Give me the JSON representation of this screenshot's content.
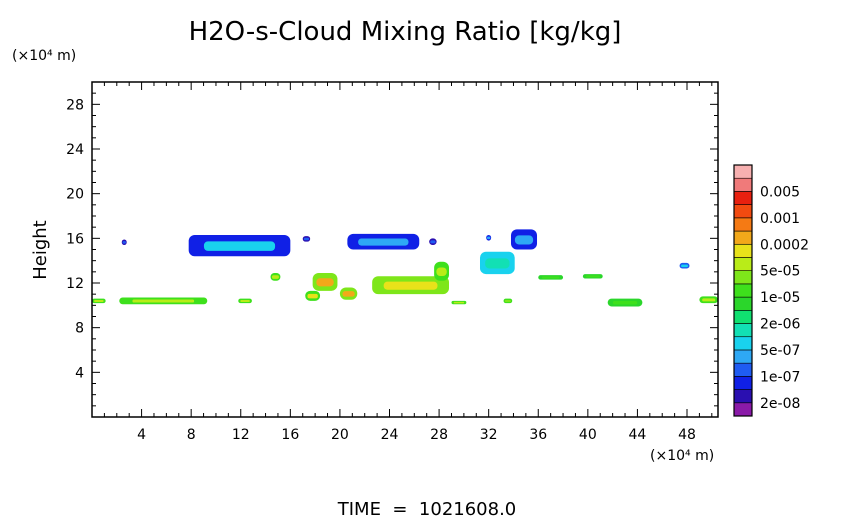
{
  "chart_data": {
    "type": "heatmap",
    "title": "H2O-s-Cloud Mixing Ratio [kg/kg]",
    "xlabel": "",
    "ylabel": "Height",
    "x_unit_label": "(×10⁴ m)",
    "y_unit_label": "(×10⁴ m)",
    "footer": "TIME  =  1021608.0",
    "xlim": [
      0,
      50.5
    ],
    "ylim": [
      0,
      30
    ],
    "x_ticks": [
      4,
      8,
      12,
      16,
      20,
      24,
      28,
      32,
      36,
      40,
      44,
      48
    ],
    "y_ticks": [
      4,
      8,
      12,
      16,
      20,
      24,
      28
    ],
    "legend": {
      "placement": "right",
      "levels": [
        {
          "label": "",
          "color": "#8a1aa8"
        },
        {
          "label": "2e-08",
          "color": "#2a0fb0"
        },
        {
          "label": "",
          "color": "#1020e6"
        },
        {
          "label": "1e-07",
          "color": "#1f5cf2"
        },
        {
          "label": "",
          "color": "#2ea8f5"
        },
        {
          "label": "5e-07",
          "color": "#19d2ee"
        },
        {
          "label": "",
          "color": "#12e0b4"
        },
        {
          "label": "2e-06",
          "color": "#10e070"
        },
        {
          "label": "",
          "color": "#2bd62b"
        },
        {
          "label": "1e-05",
          "color": "#3ee01c"
        },
        {
          "label": "",
          "color": "#7ee61a"
        },
        {
          "label": "5e-05",
          "color": "#b9ec18"
        },
        {
          "label": "",
          "color": "#e8e21a"
        },
        {
          "label": "0.0002",
          "color": "#f2a81a"
        },
        {
          "label": "",
          "color": "#f57a14"
        },
        {
          "label": "0.001",
          "color": "#f24a10"
        },
        {
          "label": "",
          "color": "#e8200f"
        },
        {
          "label": "0.005",
          "color": "#f07a7a"
        },
        {
          "label": "",
          "color": "#f7b0b0"
        }
      ]
    },
    "regions": [
      {
        "x": [
          2.4,
          2.8
        ],
        "y": [
          15.4,
          15.9
        ],
        "color": "#2a0fb0",
        "inner": "#1f5cf2"
      },
      {
        "x": [
          7.8,
          16.0
        ],
        "y": [
          14.4,
          16.3
        ],
        "color": "#1020e6",
        "inner": "#19d2ee"
      },
      {
        "x": [
          17.0,
          17.6
        ],
        "y": [
          15.7,
          16.2
        ],
        "color": "#2a0fb0",
        "inner": "#1f5cf2"
      },
      {
        "x": [
          20.6,
          26.4
        ],
        "y": [
          15.0,
          16.4
        ],
        "color": "#1020e6",
        "inner": "#2ea8f5"
      },
      {
        "x": [
          27.2,
          27.8
        ],
        "y": [
          15.4,
          16.0
        ],
        "color": "#2a0fb0",
        "inner": "#1f5cf2"
      },
      {
        "x": [
          31.8,
          32.2
        ],
        "y": [
          15.8,
          16.3
        ],
        "color": "#1020e6",
        "inner": "#2ea8f5"
      },
      {
        "x": [
          33.8,
          35.9
        ],
        "y": [
          15.0,
          16.8
        ],
        "color": "#1020e6",
        "inner": "#2ea8f5"
      },
      {
        "x": [
          31.3,
          34.1
        ],
        "y": [
          12.8,
          14.8
        ],
        "color": "#19d2ee",
        "inner": "#12e0b4"
      },
      {
        "x": [
          47.4,
          48.2
        ],
        "y": [
          13.3,
          13.8
        ],
        "color": "#1f5cf2",
        "inner": "#19d2ee"
      },
      {
        "x": [
          14.4,
          15.2
        ],
        "y": [
          12.2,
          12.9
        ],
        "color": "#3ee01c",
        "inner": "#b9ec18"
      },
      {
        "x": [
          17.8,
          19.8
        ],
        "y": [
          11.3,
          12.9
        ],
        "color": "#7ee61a",
        "inner": "#f2a81a"
      },
      {
        "x": [
          17.2,
          18.4
        ],
        "y": [
          10.4,
          11.3
        ],
        "color": "#3ee01c",
        "inner": "#e8e21a"
      },
      {
        "x": [
          20.0,
          21.4
        ],
        "y": [
          10.5,
          11.6
        ],
        "color": "#7ee61a",
        "inner": "#f2a81a"
      },
      {
        "x": [
          22.6,
          28.8
        ],
        "y": [
          11.0,
          12.6
        ],
        "color": "#7ee61a",
        "inner": "#e8e21a"
      },
      {
        "x": [
          27.6,
          28.8
        ],
        "y": [
          12.2,
          13.9
        ],
        "color": "#3ee01c",
        "inner": "#b9ec18"
      },
      {
        "x": [
          0.0,
          1.1
        ],
        "y": [
          10.2,
          10.6
        ],
        "color": "#3ee01c",
        "inner": "#b9ec18"
      },
      {
        "x": [
          2.2,
          9.3
        ],
        "y": [
          10.1,
          10.7
        ],
        "color": "#3ee01c",
        "inner": "#b9ec18"
      },
      {
        "x": [
          11.8,
          12.9
        ],
        "y": [
          10.2,
          10.6
        ],
        "color": "#3ee01c",
        "inner": "#b9ec18"
      },
      {
        "x": [
          29.0,
          30.2
        ],
        "y": [
          10.1,
          10.4
        ],
        "color": "#3ee01c",
        "inner": "#b9ec18"
      },
      {
        "x": [
          33.2,
          33.9
        ],
        "y": [
          10.2,
          10.6
        ],
        "color": "#3ee01c",
        "inner": "#7ee61a"
      },
      {
        "x": [
          36.0,
          38.0
        ],
        "y": [
          12.3,
          12.7
        ],
        "color": "#2bd62b",
        "inner": "#3ee01c"
      },
      {
        "x": [
          39.6,
          41.2
        ],
        "y": [
          12.4,
          12.8
        ],
        "color": "#2bd62b",
        "inner": "#3ee01c"
      },
      {
        "x": [
          41.6,
          44.4
        ],
        "y": [
          9.9,
          10.6
        ],
        "color": "#2bd62b",
        "inner": "#3ee01c"
      },
      {
        "x": [
          49.0,
          50.5
        ],
        "y": [
          10.2,
          10.8
        ],
        "color": "#3ee01c",
        "inner": "#b9ec18"
      }
    ]
  }
}
